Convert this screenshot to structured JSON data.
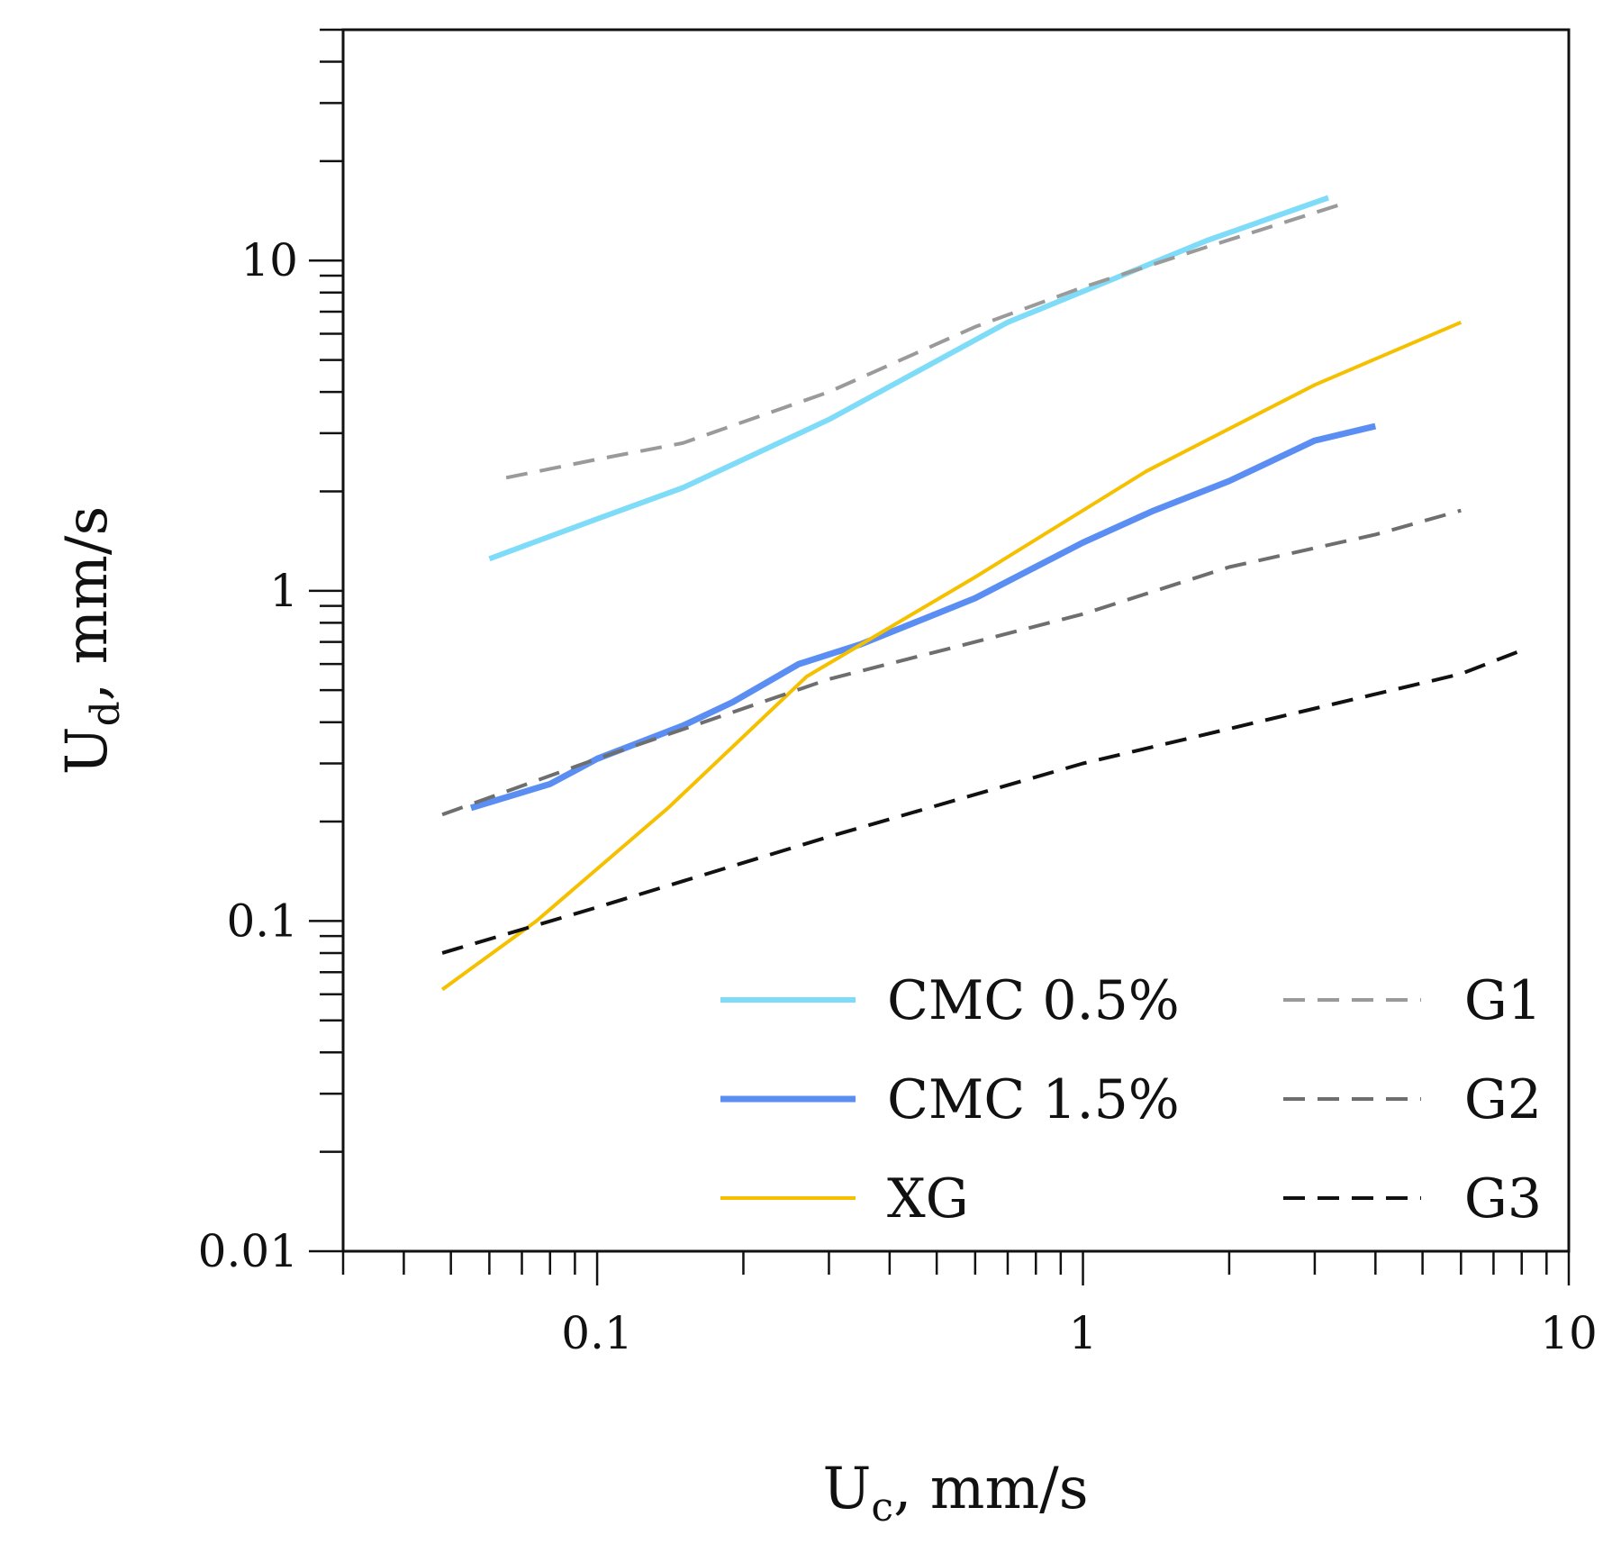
{
  "chart_data": {
    "type": "line",
    "title": "",
    "xlabel": {
      "main": "U",
      "sub": "c",
      "rest": ", mm/s"
    },
    "ylabel": {
      "main": "U",
      "sub": "d",
      "rest": ", mm/s"
    },
    "xscale": "log",
    "yscale": "log",
    "xlim": [
      0.03,
      10
    ],
    "ylim": [
      0.01,
      50
    ],
    "x_ticks": [
      {
        "value": 0.1,
        "label": "0.1"
      },
      {
        "value": 1,
        "label": "1"
      },
      {
        "value": 10,
        "label": "10"
      }
    ],
    "y_ticks": [
      {
        "value": 0.01,
        "label": "0.01"
      },
      {
        "value": 0.1,
        "label": "0.1"
      },
      {
        "value": 1,
        "label": "1"
      },
      {
        "value": 10,
        "label": "10"
      }
    ],
    "grid": false,
    "legend_position": "bottom-right",
    "series": [
      {
        "name": "CMC 0.5%",
        "color": "#7fdcf9",
        "dash": "solid",
        "width": 6,
        "x": [
          0.06,
          0.1,
          0.15,
          0.3,
          0.7,
          1.2,
          1.8,
          3.2
        ],
        "y": [
          1.25,
          1.65,
          2.05,
          3.3,
          6.5,
          9.0,
          11.5,
          15.5
        ]
      },
      {
        "name": "CMC 1.5%",
        "color": "#5b8ef2",
        "dash": "solid",
        "width": 7,
        "x": [
          0.055,
          0.08,
          0.1,
          0.15,
          0.19,
          0.26,
          0.35,
          0.6,
          1.0,
          1.4,
          2.0,
          3.0,
          4.0
        ],
        "y": [
          0.22,
          0.26,
          0.31,
          0.39,
          0.46,
          0.6,
          0.69,
          0.95,
          1.4,
          1.75,
          2.15,
          2.85,
          3.15
        ]
      },
      {
        "name": "XG",
        "color": "#f5c000",
        "dash": "solid",
        "width": 4,
        "x": [
          0.048,
          0.075,
          0.14,
          0.27,
          0.6,
          1.35,
          3.0,
          6.0
        ],
        "y": [
          0.062,
          0.1,
          0.22,
          0.55,
          1.1,
          2.3,
          4.2,
          6.5
        ]
      },
      {
        "name": "G1",
        "color": "#9a9a9a",
        "dash": "dashed",
        "width": 4,
        "x": [
          0.065,
          0.1,
          0.15,
          0.3,
          0.6,
          1.0,
          1.8,
          3.5
        ],
        "y": [
          2.2,
          2.5,
          2.8,
          4.0,
          6.3,
          8.3,
          11.0,
          15.0
        ]
      },
      {
        "name": "G2",
        "color": "#6e6e6e",
        "dash": "dashed",
        "width": 4,
        "x": [
          0.048,
          0.1,
          0.3,
          0.6,
          1.0,
          2.0,
          4.0,
          6.0
        ],
        "y": [
          0.21,
          0.31,
          0.54,
          0.7,
          0.85,
          1.18,
          1.48,
          1.75
        ]
      },
      {
        "name": "G3",
        "color": "#111111",
        "dash": "dashed",
        "width": 4,
        "x": [
          0.048,
          0.1,
          0.3,
          1.0,
          3.0,
          6.0,
          8.0
        ],
        "y": [
          0.08,
          0.11,
          0.18,
          0.3,
          0.44,
          0.56,
          0.66
        ]
      }
    ]
  }
}
